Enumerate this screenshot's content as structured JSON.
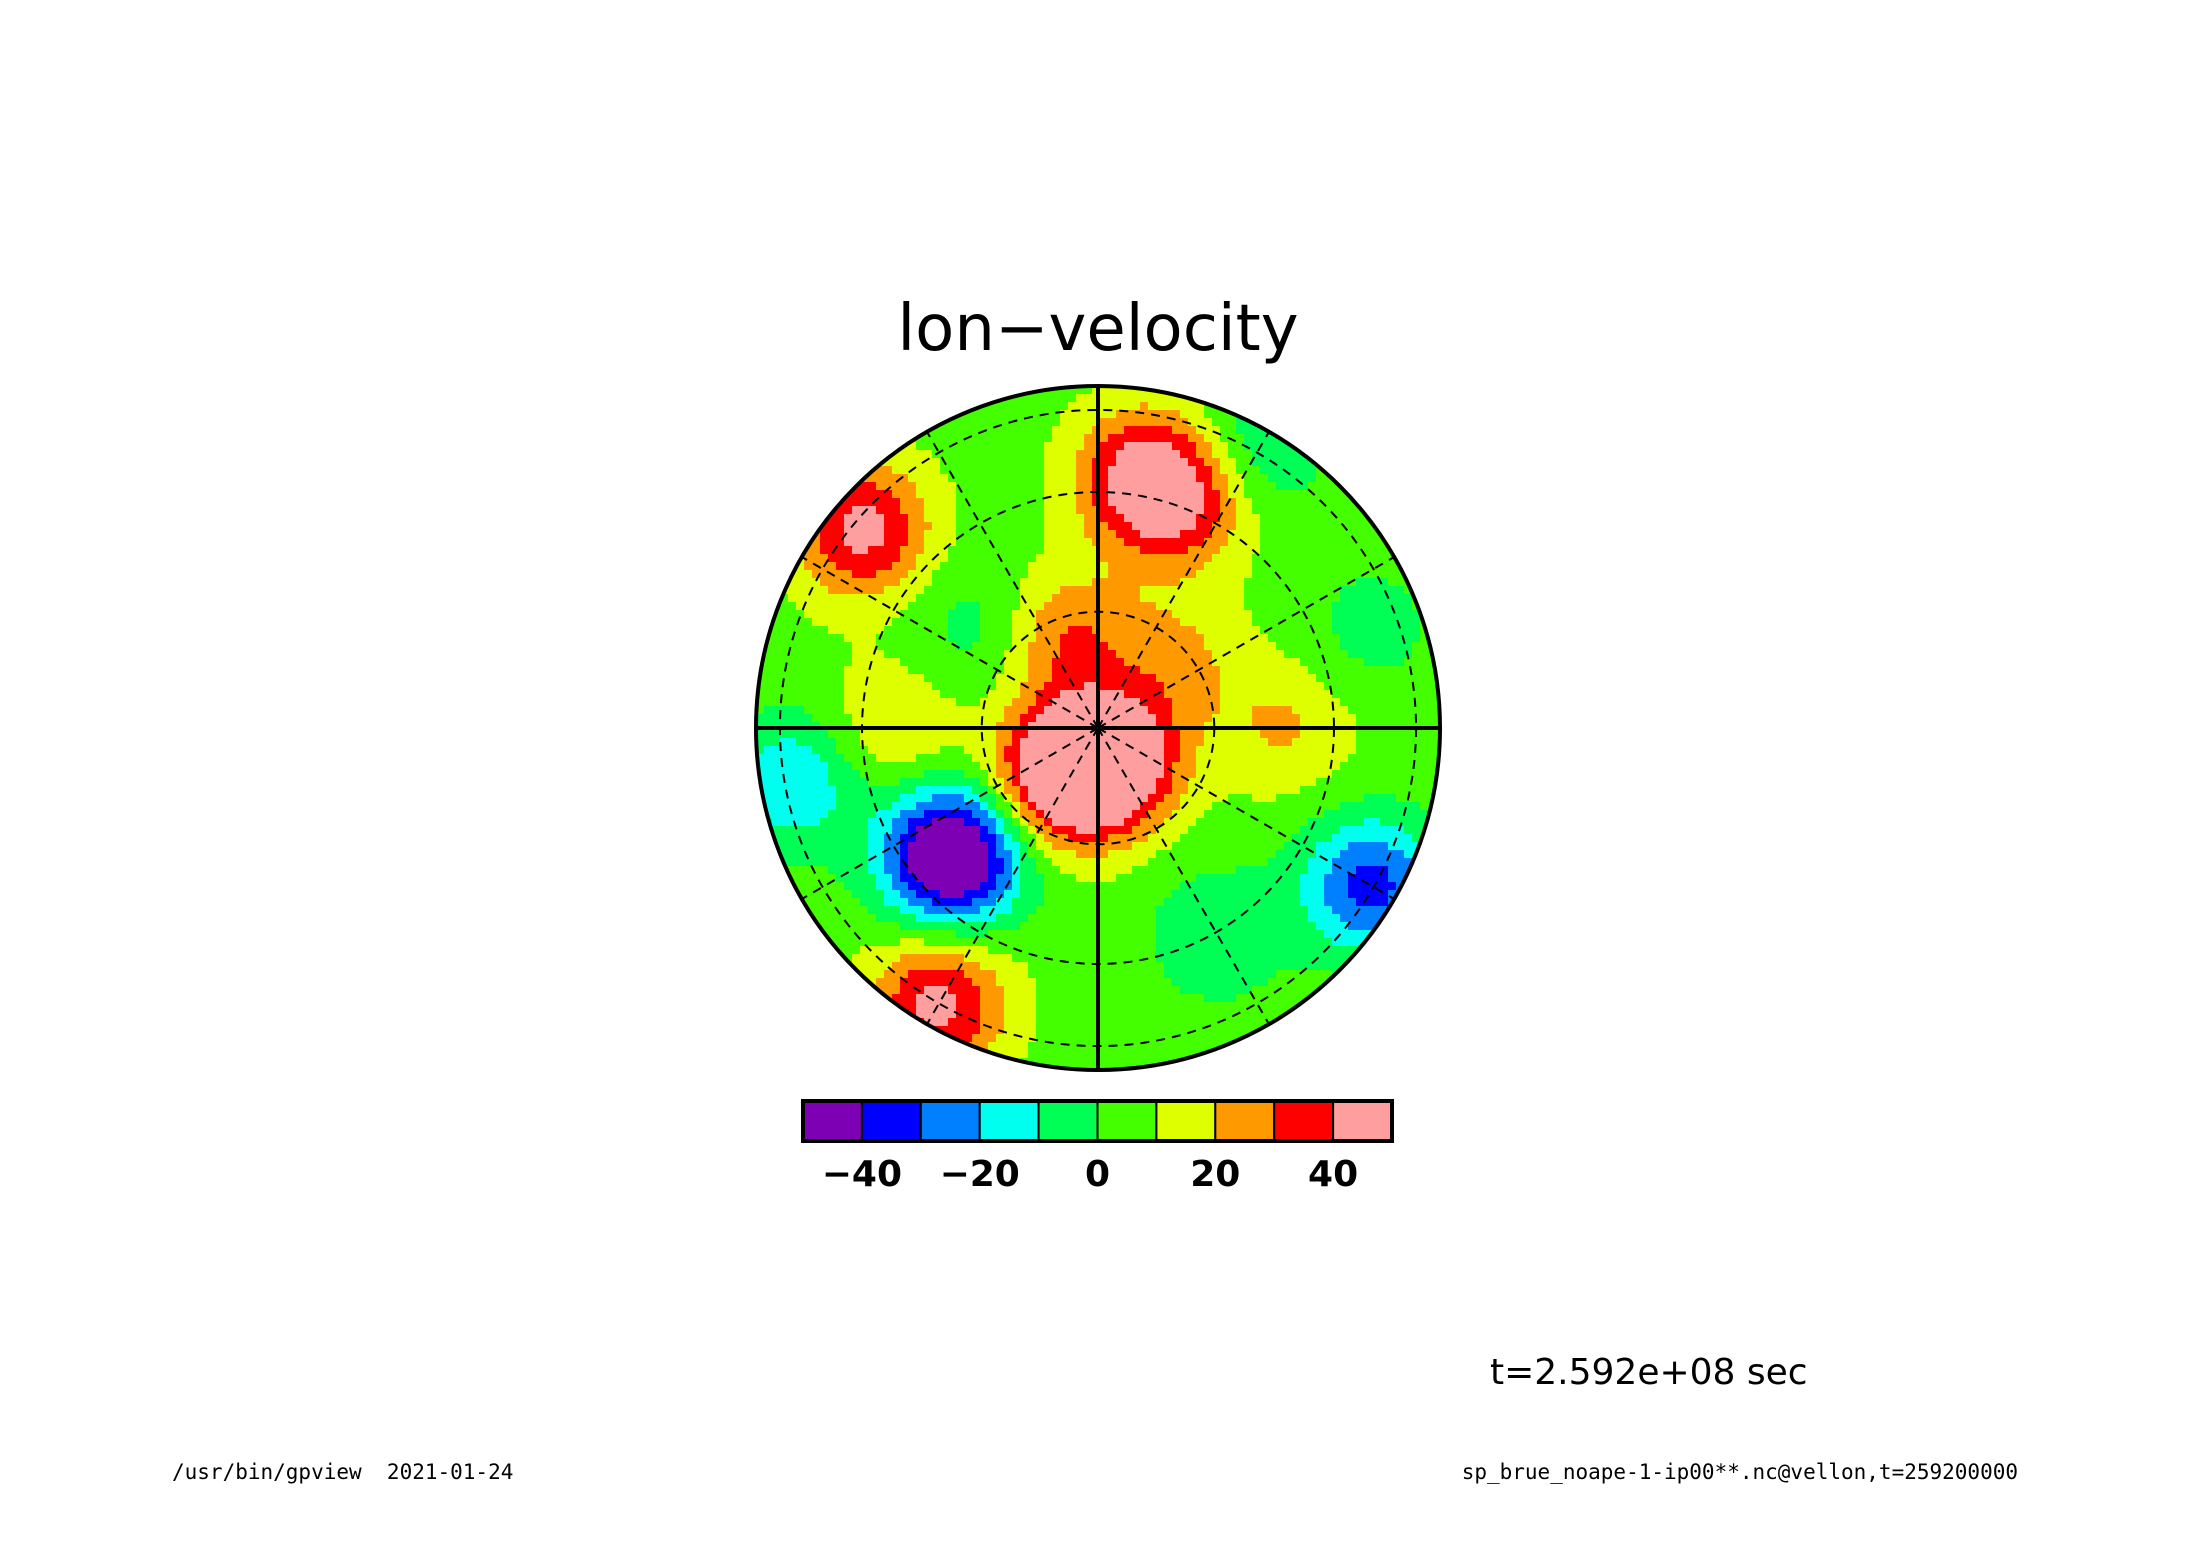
{
  "chart_data": {
    "type": "heatmap",
    "projection": "polar-stereographic",
    "title": "lon−velocity",
    "colorbar": {
      "levels": [
        -50,
        -40,
        -30,
        -20,
        -10,
        0,
        10,
        20,
        30,
        40,
        50
      ],
      "colors": [
        "#7d00b4",
        "#0000ff",
        "#0080ff",
        "#00ffee",
        "#00ff55",
        "#44ff00",
        "#ddff00",
        "#ff9900",
        "#ff0000",
        "#ff9e9e"
      ],
      "tick_values": [
        -40,
        -20,
        0,
        20,
        40
      ],
      "tick_labels": [
        "−40",
        "−20",
        "0",
        "20",
        "40"
      ]
    },
    "field_blobs": [
      {
        "angle_deg": 260,
        "radius": 0.08,
        "value": 35
      },
      {
        "angle_deg": 290,
        "radius": 0.1,
        "value": 38
      },
      {
        "angle_deg": 230,
        "radius": 0.2,
        "value": 32
      },
      {
        "angle_deg": 110,
        "radius": 0.28,
        "value": 25
      },
      {
        "angle_deg": 40,
        "radius": 0.3,
        "value": 16
      },
      {
        "angle_deg": 70,
        "radius": 0.7,
        "value": 28
      },
      {
        "angle_deg": 80,
        "radius": 0.75,
        "value": 34
      },
      {
        "angle_deg": 140,
        "radius": 0.9,
        "value": 38
      },
      {
        "angle_deg": 240,
        "radius": 0.93,
        "value": 38
      },
      {
        "angle_deg": 220,
        "radius": 0.55,
        "value": -28
      },
      {
        "angle_deg": 222,
        "radius": 0.58,
        "value": -42
      },
      {
        "angle_deg": 190,
        "radius": 0.9,
        "value": -25
      },
      {
        "angle_deg": 330,
        "radius": 0.92,
        "value": -40
      },
      {
        "angle_deg": 300,
        "radius": 0.7,
        "value": -15
      },
      {
        "angle_deg": 20,
        "radius": 0.85,
        "value": -10
      },
      {
        "angle_deg": 60,
        "radius": 0.95,
        "value": -15
      },
      {
        "angle_deg": 140,
        "radius": 0.45,
        "value": -12
      },
      {
        "angle_deg": 180,
        "radius": 0.6,
        "value": 15
      },
      {
        "angle_deg": 0,
        "radius": 0.55,
        "value": 15
      },
      {
        "angle_deg": 95,
        "radius": 0.02,
        "value": -10
      }
    ],
    "grid": true,
    "time_label": "t=2.592e+08 sec"
  },
  "footer": {
    "left": "/usr/bin/gpview  2021-01-24",
    "right": "sp_brue_noape-1-ip00**.nc@vellon,t=259200000"
  }
}
